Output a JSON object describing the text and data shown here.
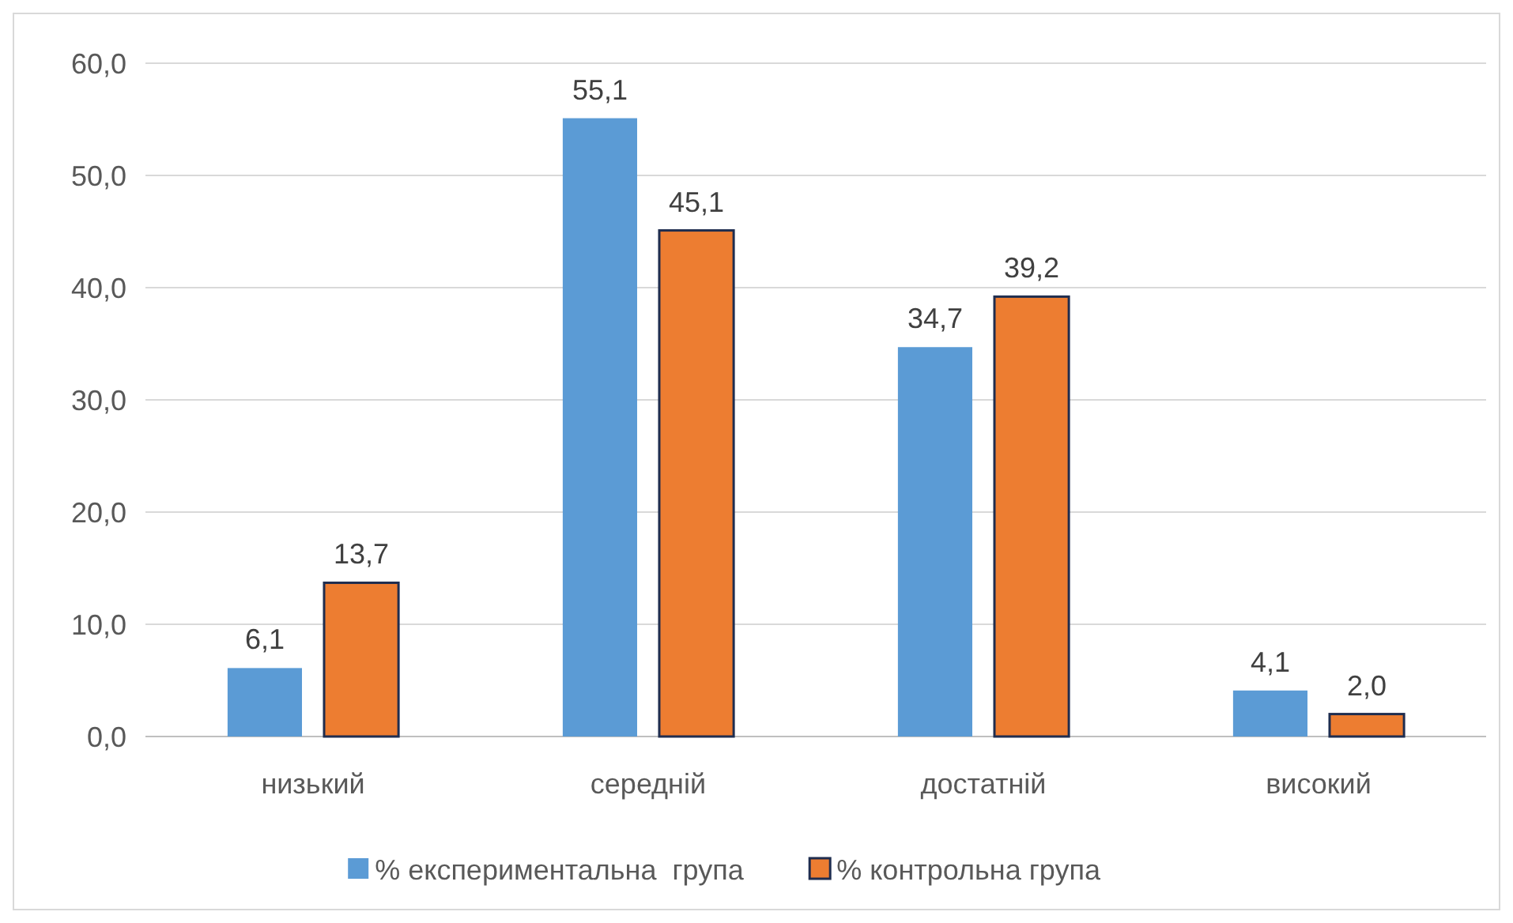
{
  "chart_data": {
    "type": "bar",
    "categories": [
      "низький",
      "середній",
      "достатній",
      "високий"
    ],
    "series": [
      {
        "name": "% експериментальна  група",
        "color": "#5b9bd5",
        "values": [
          6.1,
          55.1,
          34.7,
          4.1
        ],
        "value_labels": [
          "6,1",
          "55,1",
          "34,7",
          "4,1"
        ]
      },
      {
        "name": "% контрольна група",
        "color": "#ed7d31",
        "values": [
          13.7,
          45.1,
          39.2,
          2.0
        ],
        "value_labels": [
          "13,7",
          "45,1",
          "39,2",
          "2,0"
        ]
      }
    ],
    "ylim": [
      0,
      60
    ],
    "yticks": [
      {
        "value": 0,
        "label": "0,0"
      },
      {
        "value": 10,
        "label": "10,0"
      },
      {
        "value": 20,
        "label": "20,0"
      },
      {
        "value": 30,
        "label": "30,0"
      },
      {
        "value": 40,
        "label": "40,0"
      },
      {
        "value": 50,
        "label": "50,0"
      },
      {
        "value": 60,
        "label": "60,0"
      }
    ],
    "grid": "y",
    "legend": "bottom"
  }
}
